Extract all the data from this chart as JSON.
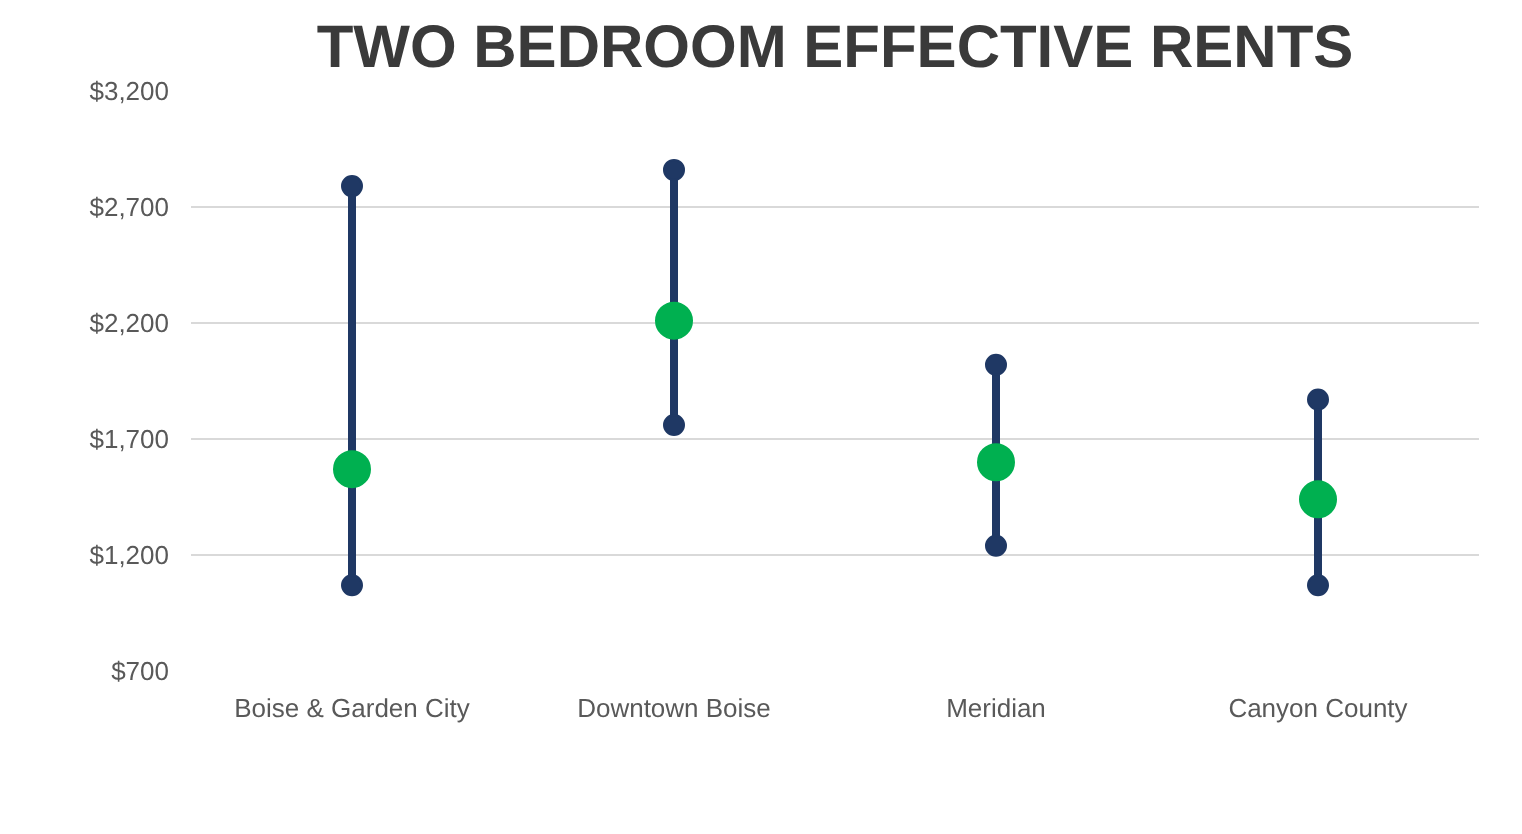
{
  "chart_data": {
    "type": "scatter",
    "title": "TWO BEDROOM EFFECTIVE RENTS",
    "categories": [
      "Boise & Garden City",
      "Downtown Boise",
      "Meridian",
      "Canyon County"
    ],
    "series": [
      {
        "type": "line",
        "color": "#1f3864",
        "marker": "circle",
        "x": [
          "Boise & Garden City",
          "Boise & Garden City"
        ],
        "values": [
          1070,
          2790
        ]
      },
      {
        "type": "line",
        "color": "#1f3864",
        "marker": "circle",
        "x": [
          "Downtown Boise",
          "Downtown Boise"
        ],
        "values": [
          1760,
          2860
        ]
      },
      {
        "type": "line",
        "color": "#1f3864",
        "marker": "circle",
        "x": [
          "Meridian",
          "Meridian"
        ],
        "values": [
          1240,
          2020
        ]
      },
      {
        "type": "line",
        "color": "#1f3864",
        "marker": "circle",
        "x": [
          "Canyon County",
          "Canyon County"
        ],
        "values": [
          1070,
          1870
        ]
      },
      {
        "color": "#00b050",
        "marker": "circle",
        "values": [
          1570,
          2210,
          1600,
          1440
        ]
      }
    ],
    "grid": "y",
    "ylim": [
      700,
      3200
    ],
    "yticks": [
      {
        "value": 700,
        "label": "$700"
      },
      {
        "value": 1200,
        "label": "$1,200"
      },
      {
        "value": 1700,
        "label": "$1,700"
      },
      {
        "value": 2200,
        "label": "$2,200"
      },
      {
        "value": 2700,
        "label": "$2,700"
      },
      {
        "value": 3200,
        "label": "$3,200"
      }
    ]
  }
}
